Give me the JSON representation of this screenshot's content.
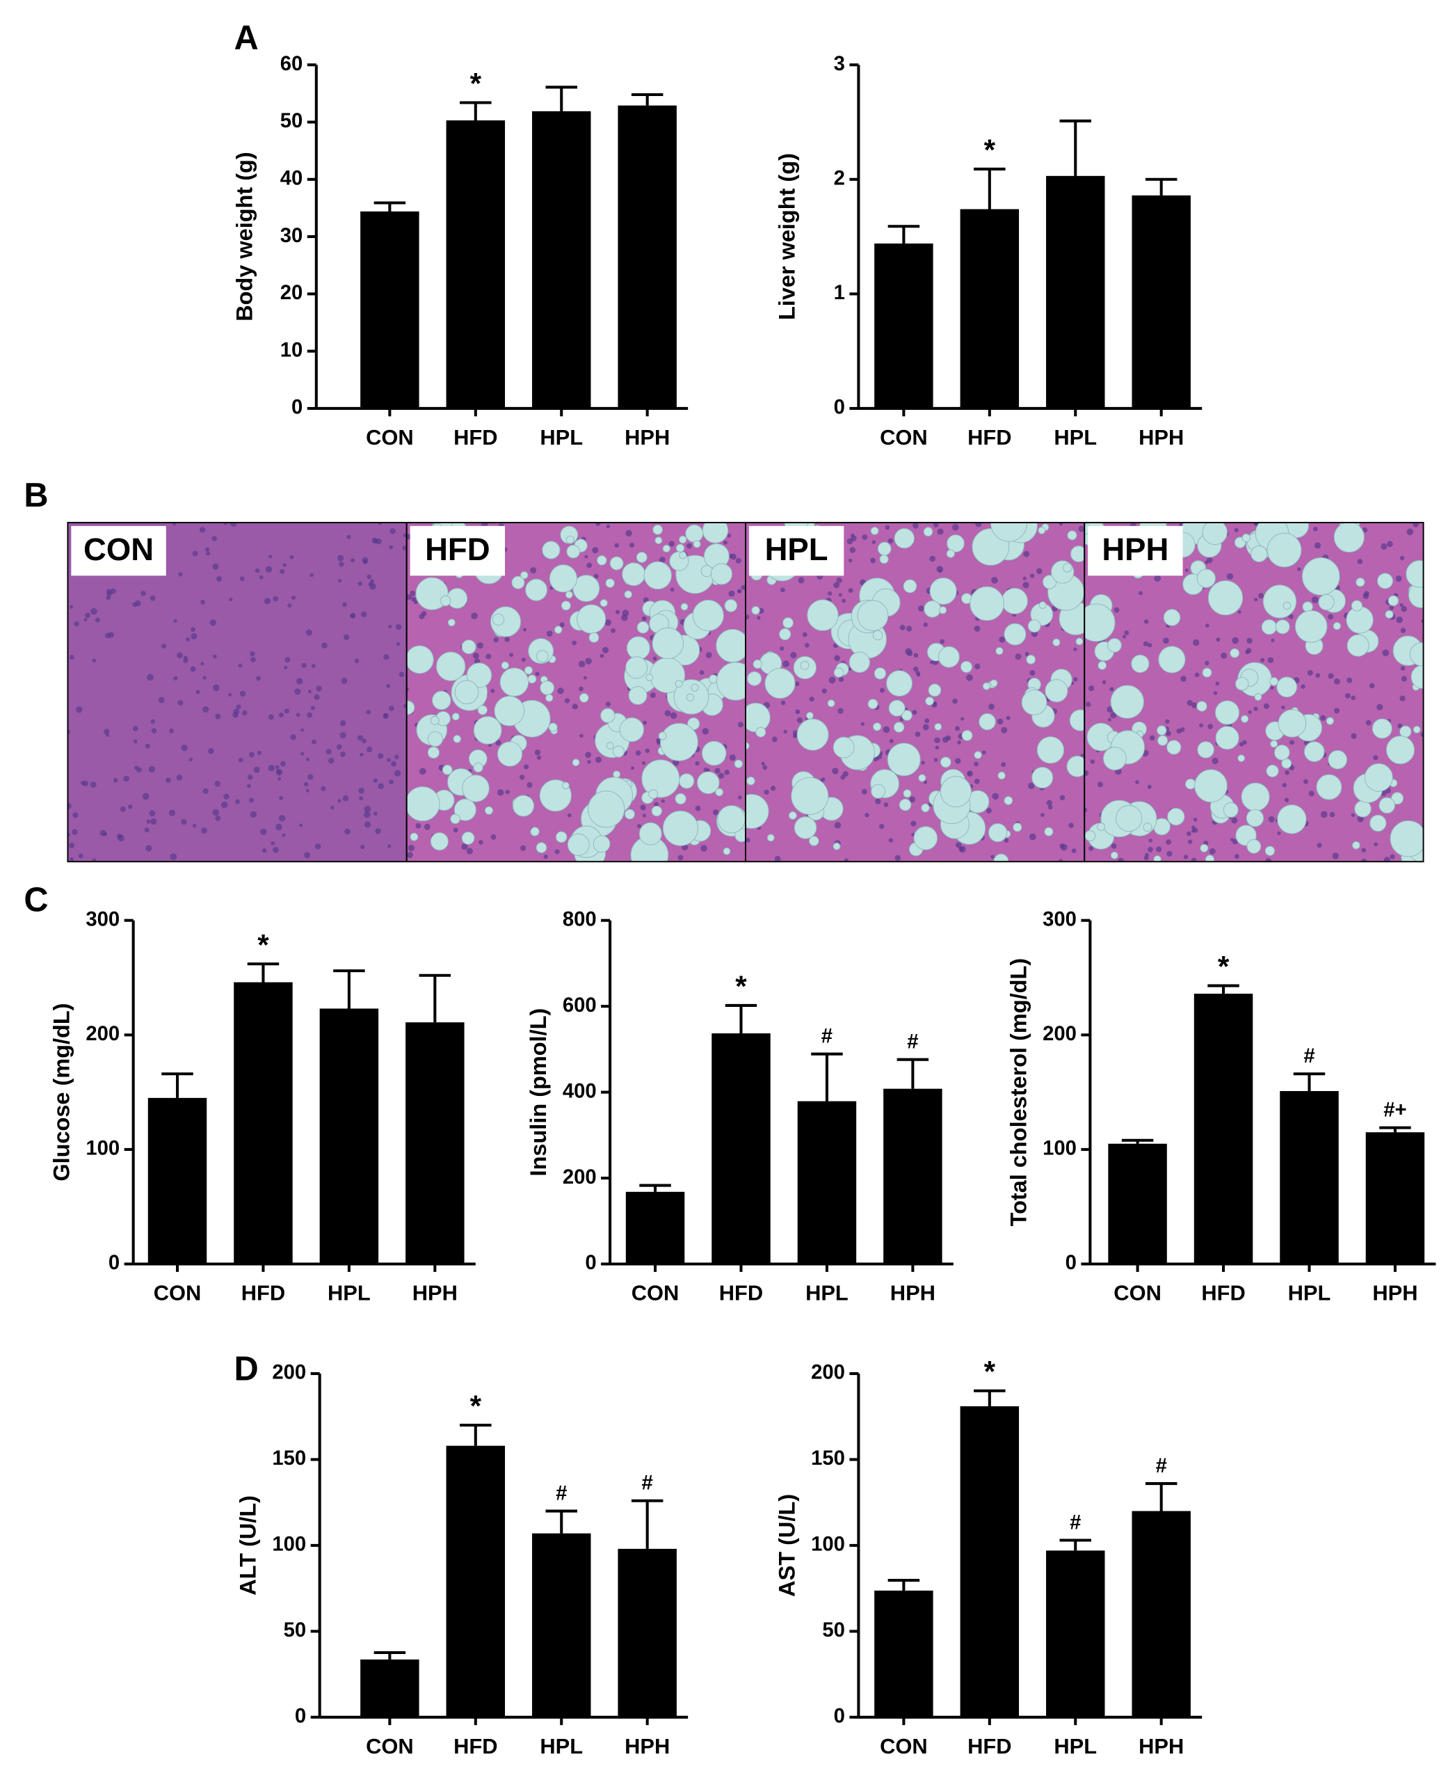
{
  "panel_labels": [
    "A",
    "B",
    "C",
    "D"
  ],
  "histology_labels": [
    "CON",
    "HFD",
    "HPL",
    "HPH"
  ],
  "chart_data": [
    {
      "type": "bar",
      "y_label": "Body weight (g)",
      "categories": [
        "CON",
        "HFD",
        "HPL",
        "HPH"
      ],
      "values": [
        34.4,
        50.3,
        51.9,
        52.9
      ],
      "errors": [
        1.5,
        3.1,
        4.2,
        1.9
      ],
      "annotations": [
        null,
        "*",
        null,
        null
      ],
      "color": "#000000",
      "ylim": [
        0,
        60
      ],
      "yticks": [
        0,
        10,
        20,
        30,
        40,
        50,
        60
      ]
    },
    {
      "type": "bar",
      "y_label": "Liver weight (g)",
      "categories": [
        "CON",
        "HFD",
        "HPL",
        "HPH"
      ],
      "values": [
        1.44,
        1.74,
        2.03,
        1.86
      ],
      "errors": [
        0.15,
        0.35,
        0.48,
        0.14
      ],
      "annotations": [
        null,
        "*",
        null,
        null
      ],
      "color": "#000000",
      "ylim": [
        0,
        3
      ],
      "yticks": [
        0,
        1,
        2,
        3
      ]
    },
    {
      "type": "bar",
      "y_label": "Glucose (mg/dL)",
      "categories": [
        "CON",
        "HFD",
        "HPL",
        "HPH"
      ],
      "values": [
        145,
        246,
        223,
        211
      ],
      "errors": [
        21,
        16,
        33,
        41
      ],
      "annotations": [
        null,
        "*",
        null,
        null
      ],
      "color": "#000000",
      "ylim": [
        0,
        300
      ],
      "yticks": [
        0,
        100,
        200,
        300
      ]
    },
    {
      "type": "bar",
      "y_label": "Insulin (pmol/L)",
      "categories": [
        "CON",
        "HFD",
        "HPL",
        "HPH"
      ],
      "values": [
        168,
        537,
        379,
        408
      ],
      "errors": [
        15,
        65,
        110,
        68
      ],
      "annotations": [
        null,
        "*",
        "#",
        "#"
      ],
      "color": "#000000",
      "ylim": [
        0,
        800
      ],
      "yticks": [
        0,
        200,
        400,
        600,
        800
      ]
    },
    {
      "type": "bar",
      "y_label": "Total cholesterol (mg/dL)",
      "categories": [
        "CON",
        "HFD",
        "HPL",
        "HPH"
      ],
      "values": [
        105,
        236,
        151,
        115
      ],
      "errors": [
        3,
        7,
        15,
        4
      ],
      "annotations": [
        null,
        "*",
        "#",
        "#+"
      ],
      "color": "#000000",
      "ylim": [
        0,
        300
      ],
      "yticks": [
        0,
        100,
        200,
        300
      ]
    },
    {
      "type": "bar",
      "y_label": "ALT (U/L)",
      "categories": [
        "CON",
        "HFD",
        "HPL",
        "HPH"
      ],
      "values": [
        33.6,
        158,
        107,
        98
      ],
      "errors": [
        4,
        12,
        13,
        28
      ],
      "annotations": [
        null,
        "*",
        "#",
        "#"
      ],
      "color": "#000000",
      "ylim": [
        0,
        200
      ],
      "yticks": [
        0,
        50,
        100,
        150,
        200
      ]
    },
    {
      "type": "bar",
      "y_label": "AST (U/L)",
      "categories": [
        "CON",
        "HFD",
        "HPL",
        "HPH"
      ],
      "values": [
        73.7,
        181,
        97,
        120
      ],
      "errors": [
        6,
        9,
        6,
        16
      ],
      "annotations": [
        null,
        "*",
        "#",
        "#"
      ],
      "color": "#000000",
      "ylim": [
        0,
        200
      ],
      "yticks": [
        0,
        50,
        100,
        150,
        200
      ]
    }
  ]
}
